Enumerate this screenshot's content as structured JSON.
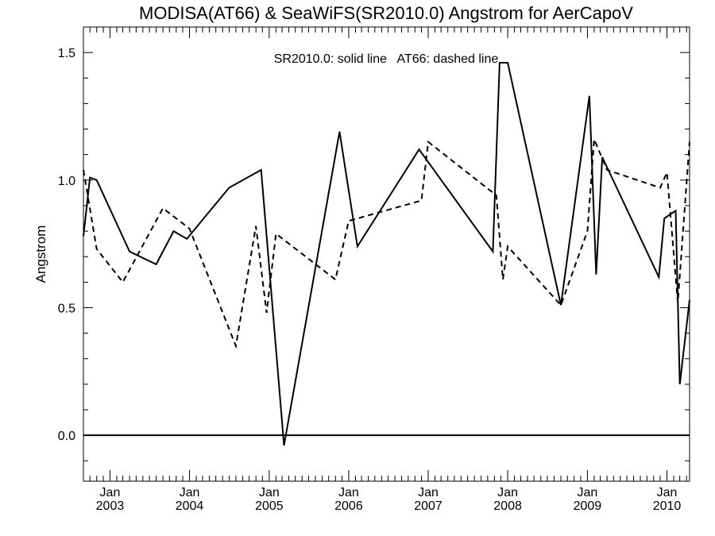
{
  "chart_data": {
    "type": "line",
    "title": "MODISA(AT66) & SeaWiFS(SR2010.0)  Angstrom for AerCapoV",
    "annotation": "SR2010.0: solid line   AT66: dashed line",
    "xlabel": "",
    "ylabel": "Angstrom",
    "xlim": [
      "2002-09-01",
      "2010-04-15"
    ],
    "ylim": [
      -0.18,
      1.6
    ],
    "yticks": [
      0.0,
      0.5,
      1.0,
      1.5
    ],
    "ytick_labels": [
      "0.0",
      "0.5",
      "1.0",
      "1.5"
    ],
    "xticks": [
      "2003-01-01",
      "2004-01-01",
      "2005-01-01",
      "2006-01-01",
      "2007-01-01",
      "2008-01-01",
      "2009-01-01",
      "2010-01-01"
    ],
    "xtick_labels": [
      [
        "Jan",
        "2003"
      ],
      [
        "Jan",
        "2004"
      ],
      [
        "Jan",
        "2005"
      ],
      [
        "Jan",
        "2006"
      ],
      [
        "Jan",
        "2007"
      ],
      [
        "Jan",
        "2008"
      ],
      [
        "Jan",
        "2009"
      ],
      [
        "Jan",
        "2010"
      ]
    ],
    "reference_line": 0.0,
    "grid": false,
    "series": [
      {
        "name": "SR2010.0",
        "style": "solid",
        "color": "#000000",
        "x": [
          "2002-09-01",
          "2002-10-01",
          "2002-11-01",
          "2003-04-01",
          "2003-08-01",
          "2003-10-20",
          "2003-12-20",
          "2004-07-01",
          "2004-11-25",
          "2005-03-10",
          "2005-11-20",
          "2006-02-10",
          "2006-11-20",
          "2007-10-25",
          "2007-11-25",
          "2008-01-01",
          "2008-09-01",
          "2009-01-10",
          "2009-02-10",
          "2009-03-10",
          "2009-11-25",
          "2009-12-20",
          "2010-02-10",
          "2010-03-01",
          "2010-04-15"
        ],
        "y": [
          0.78,
          1.01,
          1.0,
          0.72,
          0.67,
          0.8,
          0.77,
          0.97,
          1.04,
          -0.04,
          1.19,
          0.74,
          1.12,
          0.72,
          1.46,
          1.46,
          0.51,
          1.33,
          0.63,
          1.09,
          0.62,
          0.85,
          0.88,
          0.2,
          0.53
        ]
      },
      {
        "name": "AT66",
        "style": "dashed",
        "color": "#000000",
        "x": [
          "2002-09-01",
          "2002-11-01",
          "2003-03-01",
          "2003-09-01",
          "2004-01-01",
          "2004-08-01",
          "2004-11-01",
          "2004-12-20",
          "2005-02-01",
          "2005-11-01",
          "2006-01-01",
          "2006-12-01",
          "2007-01-01",
          "2007-11-10",
          "2007-12-10",
          "2008-01-01",
          "2008-09-01",
          "2009-01-01",
          "2009-02-01",
          "2009-04-01",
          "2009-12-01",
          "2010-01-01",
          "2010-02-20",
          "2010-04-15"
        ],
        "y": [
          1.04,
          0.73,
          0.6,
          0.89,
          0.81,
          0.35,
          0.82,
          0.48,
          0.79,
          0.61,
          0.84,
          0.92,
          1.15,
          0.94,
          0.61,
          0.74,
          0.51,
          0.8,
          1.16,
          1.04,
          0.97,
          1.03,
          0.52,
          1.15
        ]
      }
    ]
  }
}
